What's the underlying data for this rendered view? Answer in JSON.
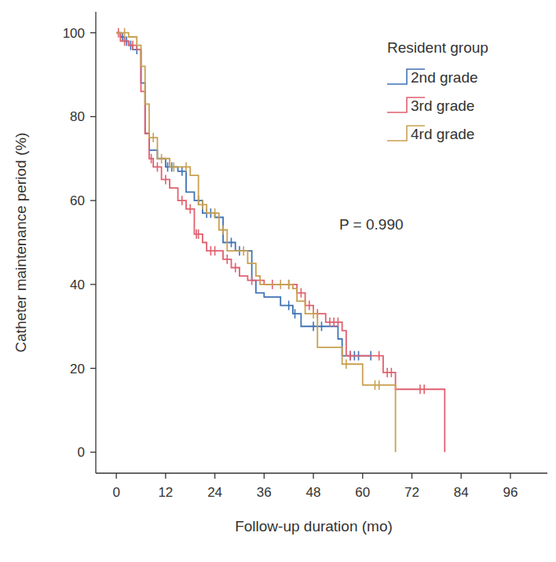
{
  "chart_data": {
    "type": "step",
    "x_label": "Follow-up duration (mo)",
    "y_label": "Catheter maintenance period (%)",
    "legend_title": "Resident group",
    "legend": "upper right",
    "annotation": "P = 0.990",
    "grid": false,
    "xlim": [
      -5,
      105
    ],
    "ylim": [
      -5,
      105
    ],
    "xticks": [
      0,
      12,
      24,
      36,
      48,
      60,
      72,
      84,
      96
    ],
    "yticks": [
      0,
      20,
      40,
      60,
      80,
      100
    ],
    "series": [
      {
        "name": "2nd grade",
        "color": "#3f72b5",
        "x": [
          0,
          1,
          2,
          3,
          4,
          6,
          7,
          8,
          10,
          12,
          15,
          17,
          19,
          21,
          24,
          26,
          29,
          33,
          34,
          36,
          40,
          43,
          45,
          54,
          55,
          62
        ],
        "values": [
          100,
          99,
          98,
          97,
          96,
          88,
          76,
          72,
          70,
          68,
          67,
          62,
          60,
          57,
          56,
          50,
          48,
          41,
          38,
          37,
          35,
          33,
          30,
          27,
          23,
          23
        ],
        "censored_x": [
          1.5,
          2.5,
          3.5,
          5,
          12.5,
          13.5,
          16,
          20,
          22,
          23,
          28,
          30,
          42,
          43.5,
          48,
          50,
          57,
          58,
          59,
          62
        ],
        "censored_values": [
          99,
          98,
          97,
          96,
          68,
          68,
          67,
          60,
          57,
          57,
          50,
          48,
          35,
          33,
          30,
          30,
          23,
          23,
          23,
          23
        ]
      },
      {
        "name": "3rd grade",
        "color": "#e0606e",
        "x": [
          0,
          1,
          3,
          5,
          6,
          7,
          8,
          9,
          11,
          13,
          15,
          17,
          19,
          21,
          22,
          26,
          28,
          30,
          32,
          36,
          44,
          46,
          48,
          51,
          55,
          56,
          65,
          68,
          80
        ],
        "values": [
          100,
          98,
          97,
          96,
          86,
          76,
          70,
          68,
          65,
          63,
          60,
          58,
          52,
          50,
          48,
          46,
          44,
          42,
          41,
          40,
          38,
          35,
          33,
          31,
          29,
          23,
          19,
          15,
          0
        ],
        "censored_x": [
          0.5,
          2,
          4,
          8.5,
          10,
          12,
          16,
          18,
          19.5,
          20,
          23,
          24,
          27,
          29,
          33,
          38,
          42,
          45,
          47,
          49,
          52,
          53,
          54,
          57,
          64,
          66,
          67,
          74,
          75
        ],
        "censored_values": [
          100,
          98,
          97,
          70,
          68,
          65,
          60,
          58,
          52,
          52,
          48,
          48,
          46,
          44,
          41,
          40,
          40,
          38,
          35,
          33,
          31,
          31,
          31,
          23,
          23,
          19,
          19,
          15,
          15
        ]
      },
      {
        "name": "4rd grade",
        "color": "#c8a050",
        "x": [
          0,
          3,
          5,
          6,
          7,
          8,
          10,
          13,
          18,
          20,
          22,
          25,
          27,
          32,
          34,
          35,
          43,
          44,
          46,
          49,
          55,
          60,
          68
        ],
        "values": [
          100,
          99,
          97,
          92,
          83,
          75,
          70,
          68,
          66,
          59,
          57,
          53,
          48,
          45,
          42,
          40,
          39,
          36,
          33,
          25,
          21,
          16,
          0
        ],
        "censored_x": [
          2,
          9,
          11,
          14,
          17,
          21,
          24,
          26,
          31,
          40,
          42,
          48,
          56,
          63,
          64
        ],
        "censored_values": [
          100,
          75,
          70,
          68,
          68,
          59,
          57,
          53,
          48,
          40,
          40,
          33,
          21,
          16,
          16
        ]
      }
    ]
  }
}
